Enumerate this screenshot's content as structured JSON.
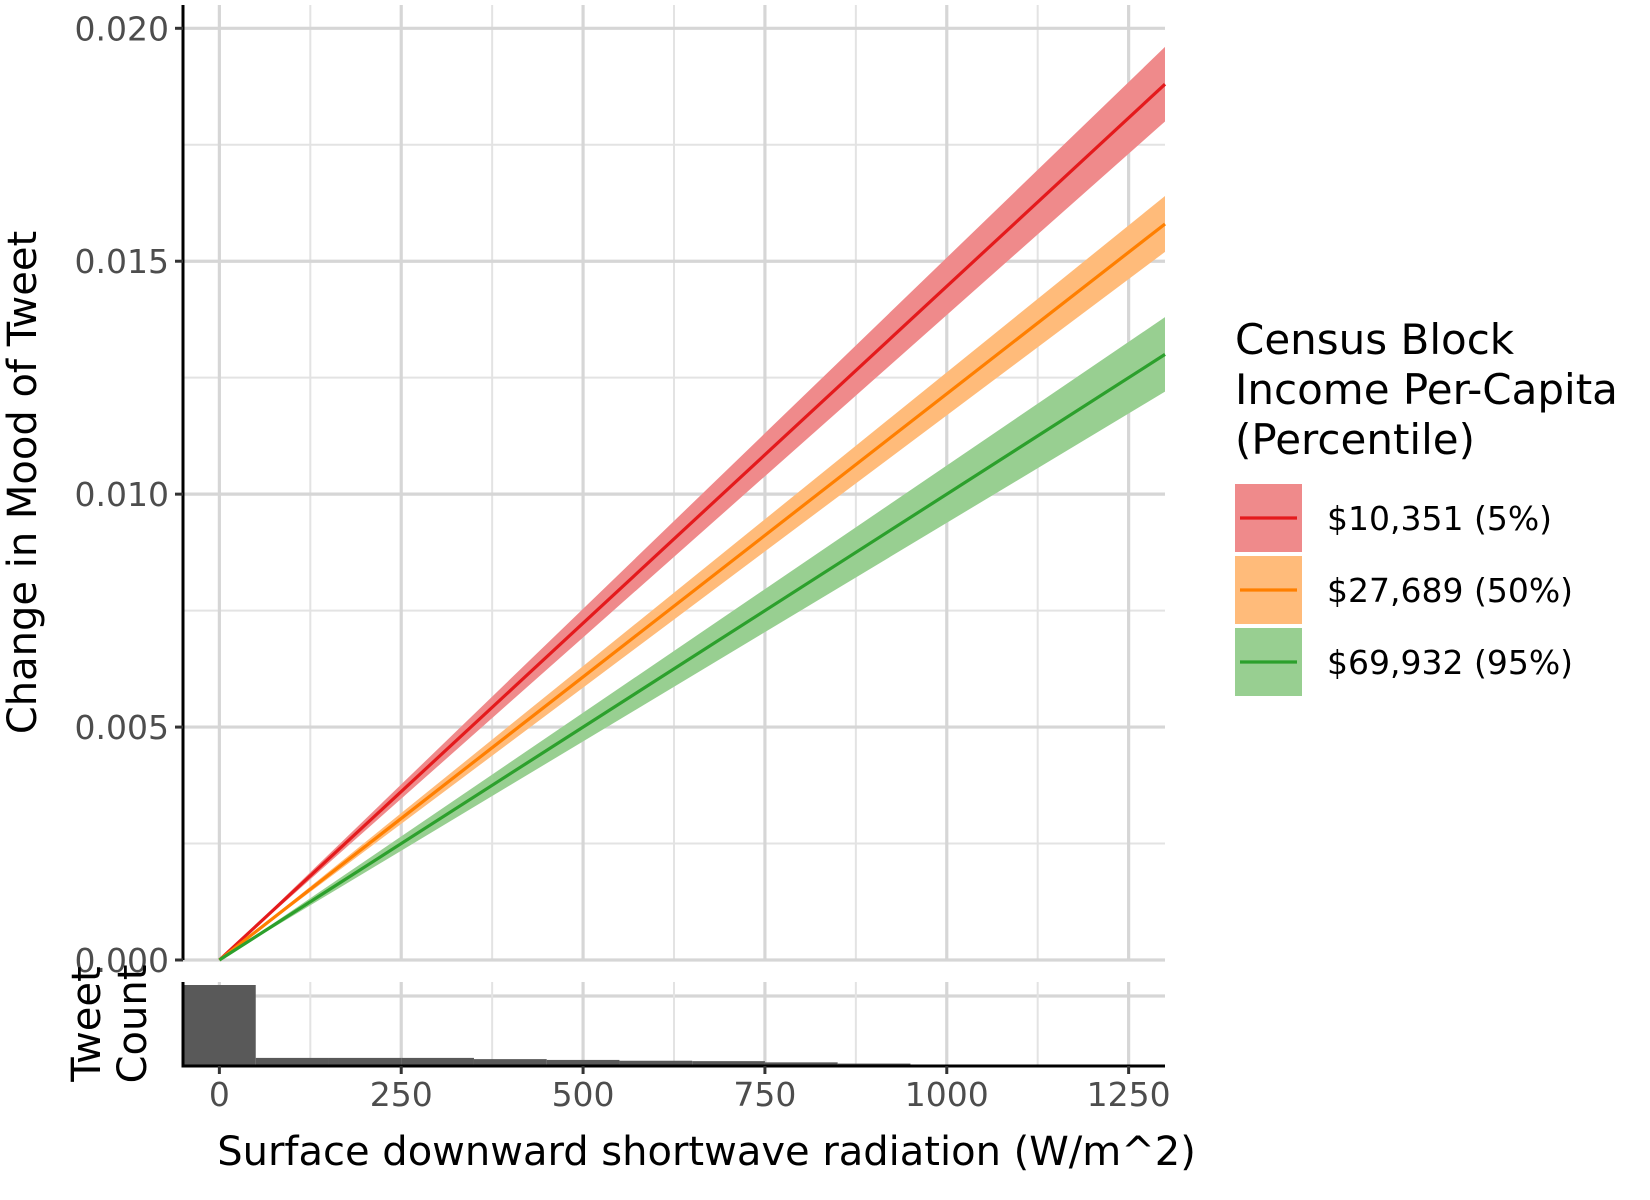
{
  "chart_data": {
    "type": "line",
    "ylabel": "Change in Mood of Tweet",
    "xlabel": "Surface downward shortwave radiation (W/m^2)",
    "y_ticks": [
      "0.000",
      "0.005",
      "0.010",
      "0.015",
      "0.020"
    ],
    "y_tick_values": [
      0.0,
      0.005,
      0.01,
      0.015,
      0.02
    ],
    "x_ticks": [
      "0",
      "250",
      "500",
      "750",
      "1000",
      "1250"
    ],
    "x_tick_values": [
      0,
      250,
      500,
      750,
      1000,
      1250
    ],
    "xlim": [
      -50,
      1300
    ],
    "ylim": [
      0.0,
      0.0205
    ],
    "grid": true,
    "legend": {
      "title_lines": [
        "Census Block",
        "Income Per-Capita",
        "(Percentile)"
      ],
      "placement": "right"
    },
    "series": [
      {
        "name": "$10,351 (5%)",
        "color": "#e41a1c",
        "fill": "#ef8a8b",
        "x": [
          0,
          1300
        ],
        "y": [
          0.0,
          0.0188
        ],
        "lower": [
          0.0,
          0.018
        ],
        "upper": [
          0.0,
          0.0196
        ]
      },
      {
        "name": "$27,689 (50%)",
        "color": "#ff7f00",
        "fill": "#ffbb7a",
        "x": [
          0,
          1300
        ],
        "y": [
          0.0,
          0.0158
        ],
        "lower": [
          0.0,
          0.0152
        ],
        "upper": [
          0.0,
          0.0164
        ]
      },
      {
        "name": "$69,932 (95%)",
        "color": "#2ca02c",
        "fill": "#98cf91",
        "x": [
          0,
          1300
        ],
        "y": [
          0.0,
          0.013
        ],
        "lower": [
          0.0,
          0.0122
        ],
        "upper": [
          0.0,
          0.0138
        ]
      }
    ],
    "histogram": {
      "ylabel_lines": [
        "Tweet",
        "Count"
      ],
      "bin_width": 100,
      "bins": [
        {
          "x0": -50,
          "x1": 50,
          "count": 1.0
        },
        {
          "x0": 50,
          "x1": 150,
          "count": 0.1
        },
        {
          "x0": 150,
          "x1": 250,
          "count": 0.1
        },
        {
          "x0": 250,
          "x1": 350,
          "count": 0.1
        },
        {
          "x0": 350,
          "x1": 450,
          "count": 0.085
        },
        {
          "x0": 450,
          "x1": 550,
          "count": 0.075
        },
        {
          "x0": 550,
          "x1": 650,
          "count": 0.065
        },
        {
          "x0": 650,
          "x1": 750,
          "count": 0.06
        },
        {
          "x0": 750,
          "x1": 850,
          "count": 0.045
        },
        {
          "x0": 850,
          "x1": 950,
          "count": 0.03
        },
        {
          "x0": 950,
          "x1": 1050,
          "count": 0.015
        },
        {
          "x0": 1050,
          "x1": 1150,
          "count": 0.008
        },
        {
          "x0": 1150,
          "x1": 1250,
          "count": 0.004
        },
        {
          "x0": 1250,
          "x1": 1300,
          "count": 0.002
        }
      ]
    }
  }
}
